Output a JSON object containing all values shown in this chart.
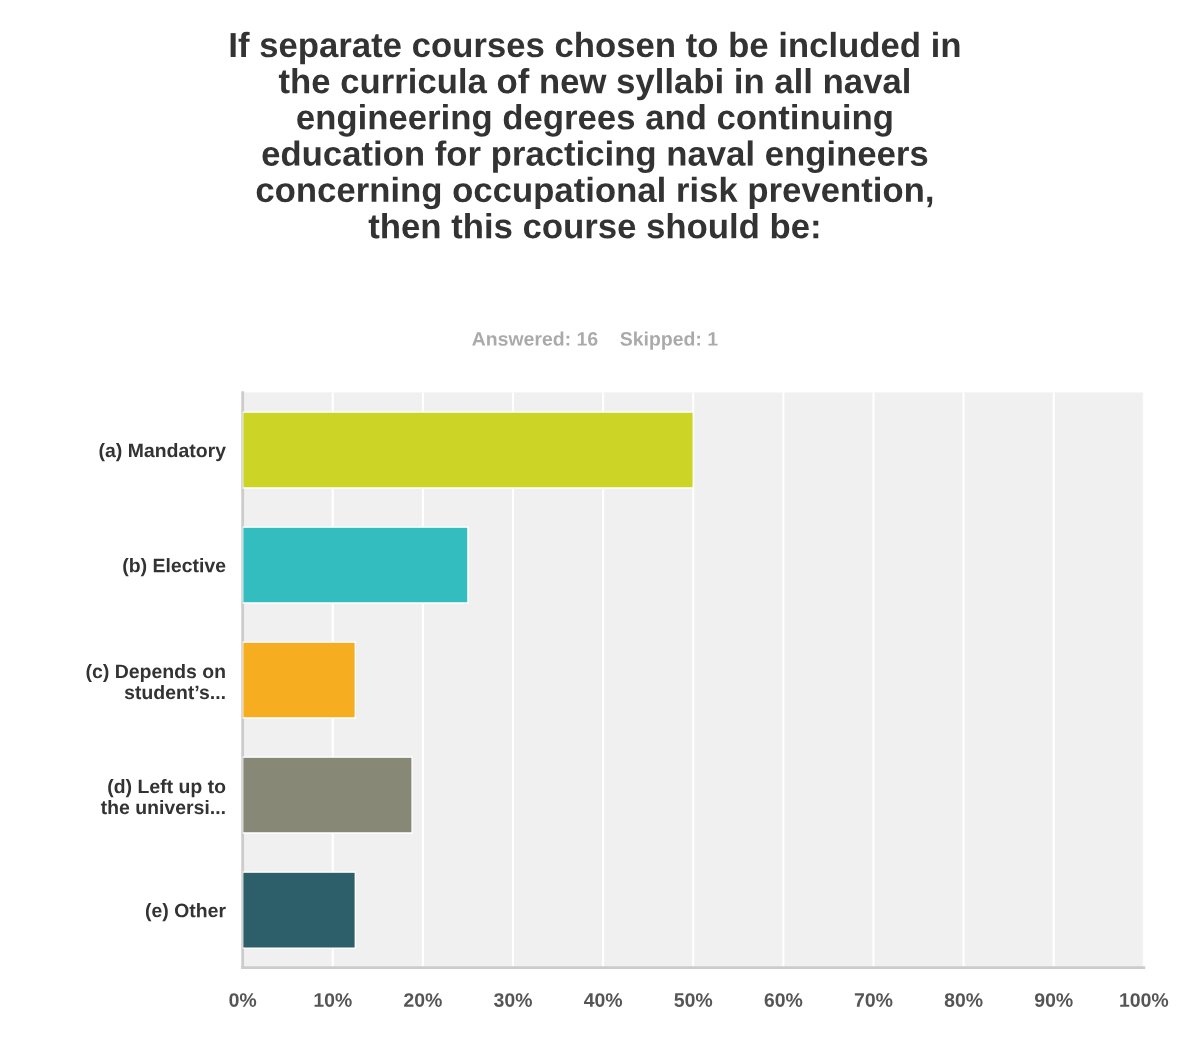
{
  "chart_data": {
    "type": "bar",
    "orientation": "horizontal",
    "title": "If separate courses chosen to be included in\nthe curricula of new syllabi in all naval\nengineering degrees and continuing\neducation for practicing naval engineers\nconcerning occupational risk prevention,\nthen this course should be:",
    "subtitle": "Answered: 16    Skipped: 1",
    "categories": [
      "(a) Mandatory",
      "(b) Elective",
      "(c) Depends on\nstudent’s...",
      "(d) Left up to\nthe universi...",
      "(e) Other"
    ],
    "values": [
      50,
      25,
      12.5,
      18.8,
      12.5
    ],
    "colors": [
      "#ccd426",
      "#33bdbf",
      "#f6ae20",
      "#888877",
      "#2d5f6a"
    ],
    "xlim": [
      0,
      100
    ],
    "xticks": [
      {
        "value": 0,
        "label": "0%"
      },
      {
        "value": 10,
        "label": "10%"
      },
      {
        "value": 20,
        "label": "20%"
      },
      {
        "value": 30,
        "label": "30%"
      },
      {
        "value": 40,
        "label": "40%"
      },
      {
        "value": 50,
        "label": "50%"
      },
      {
        "value": 60,
        "label": "60%"
      },
      {
        "value": 70,
        "label": "70%"
      },
      {
        "value": 80,
        "label": "80%"
      },
      {
        "value": 90,
        "label": "90%"
      },
      {
        "value": 100,
        "label": "100%"
      }
    ],
    "grid": "x",
    "legend": false
  }
}
